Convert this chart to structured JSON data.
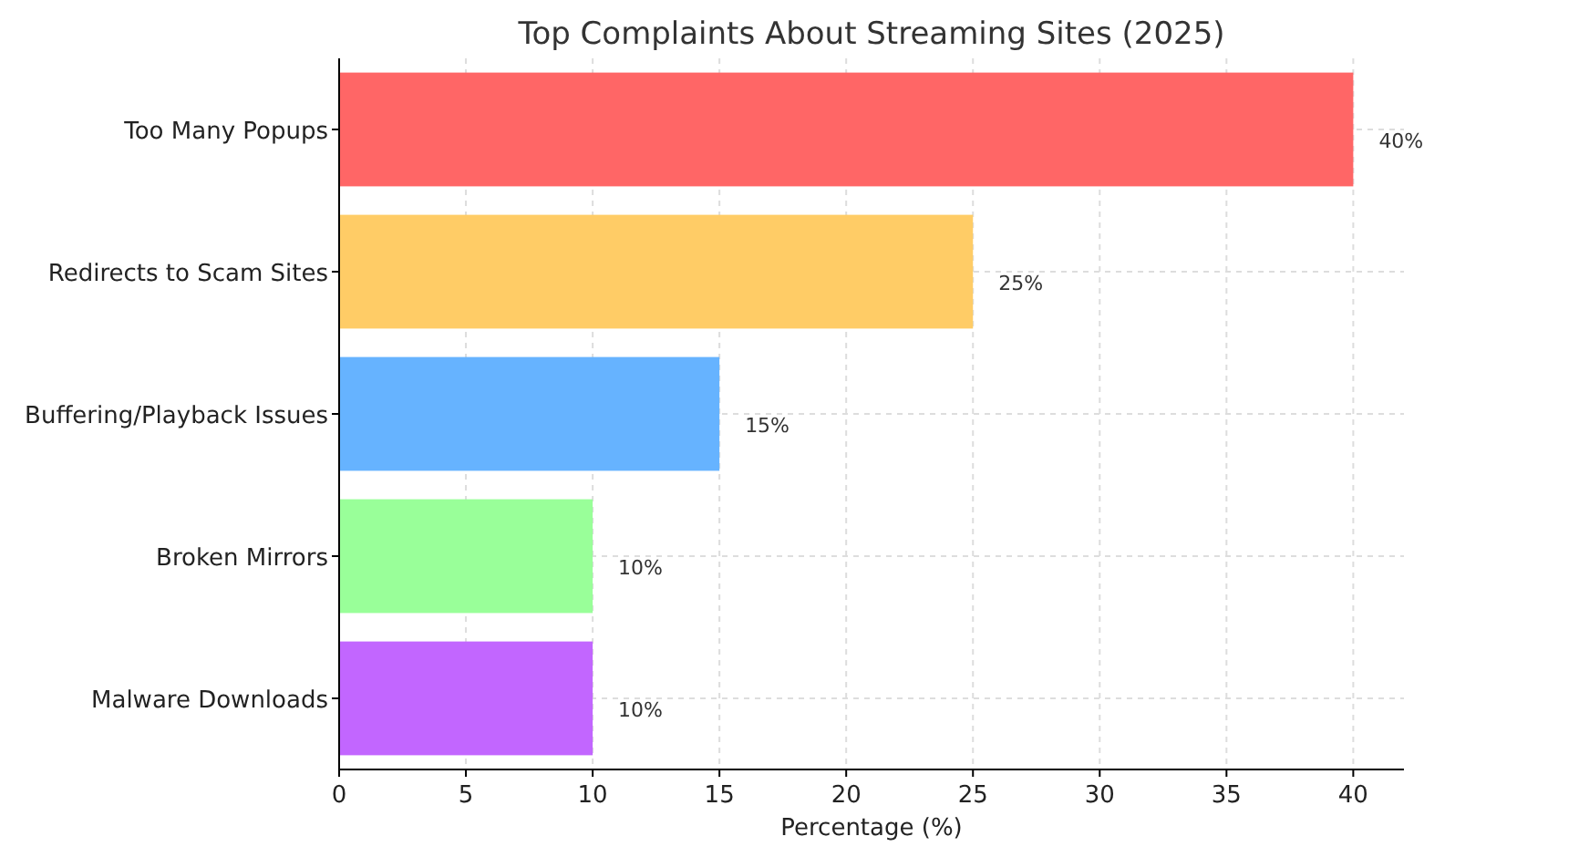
{
  "chart_data": {
    "type": "bar",
    "orientation": "horizontal",
    "title": "Top Complaints About Streaming Sites (2025)",
    "xlabel": "Percentage (%)",
    "categories": [
      "Too Many Popups",
      "Redirects to Scam Sites",
      "Buffering/Playback Issues",
      "Broken Mirrors",
      "Malware Downloads"
    ],
    "values": [
      40,
      25,
      15,
      10,
      10
    ],
    "colors": [
      "#ff6666",
      "#ffcc66",
      "#66b3ff",
      "#99ff99",
      "#c266ff"
    ],
    "value_labels": [
      "40%",
      "25%",
      "15%",
      "10%",
      "10%"
    ],
    "xlim": [
      0,
      42
    ],
    "xticks": [
      0,
      5,
      10,
      15,
      20,
      25,
      30,
      35,
      40
    ],
    "grid": true
  }
}
